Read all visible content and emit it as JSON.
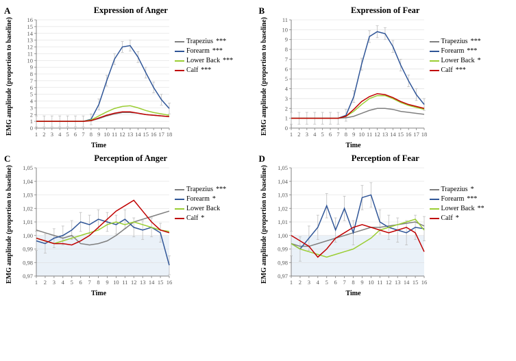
{
  "global": {
    "ylabel": "EMG amplitude (proportion to baseline)",
    "xlabel": "Time",
    "series_names": [
      "Trapezius",
      "Forearm",
      "Lower Back",
      "Calf"
    ],
    "colors": {
      "Trapezius": "#7f7f7f",
      "Forearm": "#2f5597",
      "Lower Back": "#9acd32",
      "Calf": "#c00000",
      "axis": "#808080",
      "grid": "#d9d9d9",
      "tick_text": "#595959",
      "errorbar": "#bfbfbf",
      "shade": "#eaf1f8",
      "bg": "#ffffff"
    },
    "title_fontsize": 12.5,
    "axis_label_fontsize": 10,
    "tick_fontsize": 8.5,
    "line_width": 1.5,
    "errorbar_width": 0.8,
    "errorbar_cap": 2
  },
  "panels": [
    {
      "letter": "A",
      "title": "Expression  of Anger",
      "xticks": [
        1,
        2,
        3,
        4,
        5,
        6,
        7,
        8,
        9,
        10,
        11,
        12,
        13,
        14,
        15,
        16,
        17,
        18
      ],
      "ylim": [
        0,
        16
      ],
      "ytick_step": 1,
      "decimal_comma": false,
      "shade_below": null,
      "sig": {
        "Trapezius": "***",
        "Forearm": "***",
        "Lower Back": "***",
        "Calf": "***"
      },
      "error": 0.8,
      "series": {
        "Trapezius": [
          1,
          1,
          1,
          1,
          1,
          1,
          1,
          1.1,
          1.4,
          1.8,
          2.1,
          2.3,
          2.3,
          2.2,
          2.0,
          1.9,
          1.8,
          1.7
        ],
        "Forearm": [
          1,
          1,
          1,
          1,
          1,
          1,
          1,
          1.3,
          3.5,
          7.0,
          10.2,
          12.0,
          12.2,
          10.5,
          8.2,
          6.0,
          4.2,
          2.9
        ],
        "Lower Back": [
          1,
          1,
          1,
          1,
          1,
          1,
          1,
          1.2,
          1.8,
          2.4,
          2.9,
          3.2,
          3.3,
          3.0,
          2.6,
          2.3,
          2.1,
          1.9
        ],
        "Calf": [
          1,
          1,
          1,
          1,
          1,
          1,
          1,
          1.1,
          1.5,
          1.9,
          2.2,
          2.4,
          2.4,
          2.2,
          2.0,
          1.9,
          1.8,
          1.7
        ]
      }
    },
    {
      "letter": "B",
      "title": "Expression  of Fear",
      "xticks": [
        1,
        2,
        3,
        4,
        5,
        6,
        7,
        8,
        9,
        10,
        11,
        12,
        13,
        14,
        15,
        16,
        17,
        18
      ],
      "ylim": [
        0,
        11
      ],
      "ytick_step": 1,
      "decimal_comma": false,
      "shade_below": null,
      "sig": {
        "Trapezius": "***",
        "Forearm": "***",
        "Lower Back": "*",
        "Calf": "***"
      },
      "error": 0.6,
      "series": {
        "Trapezius": [
          1,
          1,
          1,
          1,
          1,
          1,
          1,
          1.05,
          1.2,
          1.5,
          1.8,
          2.0,
          2.0,
          1.9,
          1.7,
          1.6,
          1.5,
          1.4
        ],
        "Forearm": [
          1,
          1,
          1,
          1,
          1,
          1,
          1,
          1.3,
          3.2,
          6.5,
          9.3,
          9.8,
          9.6,
          8.3,
          6.4,
          4.8,
          3.4,
          2.4
        ],
        "Lower Back": [
          1,
          1,
          1,
          1,
          1,
          1,
          1,
          1.2,
          1.7,
          2.4,
          3.0,
          3.3,
          3.3,
          3.0,
          2.6,
          2.3,
          2.1,
          1.9
        ],
        "Calf": [
          1,
          1,
          1,
          1,
          1,
          1,
          1,
          1.2,
          1.9,
          2.7,
          3.2,
          3.5,
          3.4,
          3.1,
          2.7,
          2.4,
          2.2,
          2.0
        ]
      }
    },
    {
      "letter": "C",
      "title": "Perception of Anger",
      "xticks": [
        1,
        2,
        3,
        4,
        5,
        6,
        7,
        8,
        9,
        10,
        11,
        12,
        13,
        14,
        15,
        16
      ],
      "ylim": [
        0.97,
        1.05
      ],
      "ytick_step": 0.01,
      "decimal_comma": true,
      "shade_below": 1.0,
      "sig": {
        "Trapezius": "***",
        "Forearm": "*",
        "Lower Back": "",
        "Calf": "*"
      },
      "error": 0.007,
      "series": {
        "Trapezius": [
          1.004,
          1.002,
          1.0,
          0.998,
          1.0,
          0.994,
          0.993,
          0.994,
          0.996,
          1.0,
          1.005,
          1.01,
          1.012,
          1.014,
          1.016,
          1.018
        ],
        "Forearm": [
          0.996,
          0.994,
          0.998,
          1.0,
          1.004,
          1.01,
          1.008,
          1.012,
          1.01,
          1.008,
          1.012,
          1.006,
          1.004,
          1.006,
          1.002,
          0.978
        ],
        "Lower Back": [
          0.998,
          0.996,
          0.994,
          0.996,
          0.998,
          1.0,
          1.002,
          1.004,
          1.008,
          1.01,
          1.008,
          1.01,
          1.008,
          1.006,
          1.004,
          1.003
        ],
        "Calf": [
          0.998,
          0.996,
          0.994,
          0.994,
          0.993,
          0.996,
          1.0,
          1.006,
          1.012,
          1.018,
          1.022,
          1.026,
          1.018,
          1.01,
          1.004,
          1.002
        ]
      }
    },
    {
      "letter": "D",
      "title": "Perception of Fear",
      "xticks": [
        1,
        2,
        3,
        4,
        5,
        6,
        7,
        8,
        9,
        10,
        11,
        12,
        13,
        14,
        15,
        16
      ],
      "ylim": [
        0.97,
        1.05
      ],
      "ytick_step": 0.01,
      "decimal_comma": true,
      "shade_below": 1.0,
      "sig": {
        "Trapezius": "*",
        "Forearm": "***",
        "Lower Back": "**",
        "Calf": "*"
      },
      "error": 0.009,
      "series": {
        "Trapezius": [
          0.994,
          0.992,
          0.992,
          0.994,
          0.996,
          0.998,
          1.0,
          1.002,
          1.004,
          1.006,
          1.006,
          1.007,
          1.008,
          1.009,
          1.01,
          1.007
        ],
        "Forearm": [
          0.994,
          0.99,
          0.998,
          1.006,
          1.022,
          1.004,
          1.02,
          1.002,
          1.028,
          1.03,
          1.01,
          1.006,
          1.004,
          1.002,
          1.006,
          1.005
        ],
        "Lower Back": [
          0.994,
          0.99,
          0.988,
          0.986,
          0.984,
          0.986,
          0.988,
          0.99,
          0.994,
          0.998,
          1.004,
          1.006,
          1.008,
          1.01,
          1.012,
          1.004
        ],
        "Calf": [
          1.0,
          0.996,
          0.992,
          0.984,
          0.99,
          0.998,
          1.002,
          1.006,
          1.008,
          1.006,
          1.004,
          1.002,
          1.004,
          1.006,
          1.002,
          0.988
        ]
      }
    }
  ]
}
